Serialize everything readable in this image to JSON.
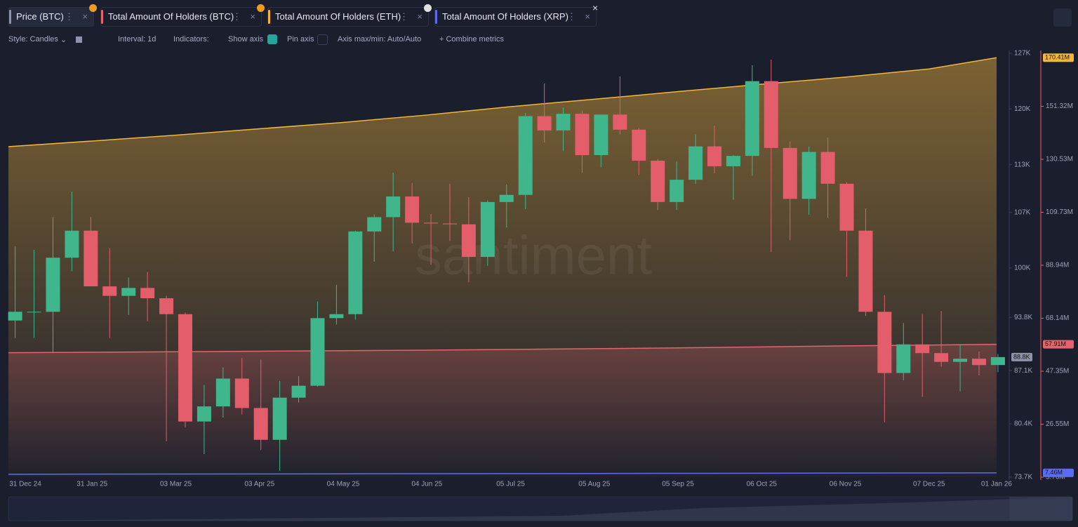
{
  "tabs": [
    {
      "label": "Price (BTC)",
      "color": "#8f93a8"
    },
    {
      "label": "Total Amount Of Holders (BTC)",
      "color": "#e5646b"
    },
    {
      "label": "Total Amount Of Holders (ETH)",
      "color": "#f3b63a"
    },
    {
      "label": "Total Amount Of Holders (XRP)",
      "color": "#5b6cf0"
    }
  ],
  "toolbar": {
    "style": "Style: Candles",
    "interval": "Interval: 1d",
    "indicators": "Indicators:",
    "show_axis": "Show axis",
    "pin_axis": "Pin axis",
    "axis_minmax": "Axis max/min: Auto/Auto",
    "combine": "Combine metrics"
  },
  "watermark": "santiment",
  "chart_data": {
    "type": "candlestick",
    "x_range": [
      "31 Dec 24",
      "01 Jan 26"
    ],
    "xticks": [
      "31 Dec 24",
      "31 Jan 25",
      "03 Mar 25",
      "03 Apr 25",
      "04 May 25",
      "04 Jun 25",
      "05 Jul 25",
      "05 Aug 25",
      "05 Sep 25",
      "06 Oct 25",
      "06 Nov 25",
      "07 Dec 25",
      "01 Jan 26"
    ],
    "ylim": [
      73.7,
      127
    ],
    "yticks": [
      {
        "value": 127,
        "label": "127K"
      },
      {
        "value": 120,
        "label": "120K"
      },
      {
        "value": 113,
        "label": "113K"
      },
      {
        "value": 107,
        "label": "107K"
      },
      {
        "value": 100,
        "label": "100K"
      },
      {
        "value": 93.8,
        "label": "93.8K"
      },
      {
        "value": 87.1,
        "label": "87.1K"
      },
      {
        "value": 80.4,
        "label": "80.4K"
      },
      {
        "value": 73.7,
        "label": "73.7K"
      }
    ],
    "up_color": "#3fb68b",
    "down_color": "#e35d6a",
    "last_price_label": "88.8K",
    "candles": [
      {
        "date": "30 Dec 24",
        "open": 93.4,
        "high": 102.7,
        "low": 91.2,
        "close": 94.5
      },
      {
        "date": "06 Jan 25",
        "open": 94.5,
        "high": 102.3,
        "low": 91.2,
        "close": 94.5
      },
      {
        "date": "13 Jan 25",
        "open": 94.5,
        "high": 106.4,
        "low": 89.3,
        "close": 101.3
      },
      {
        "date": "20 Jan 25",
        "open": 101.3,
        "high": 109.6,
        "low": 99.6,
        "close": 104.7
      },
      {
        "date": "27 Jan 25",
        "open": 104.7,
        "high": 106.4,
        "low": 97.8,
        "close": 97.7
      },
      {
        "date": "03 Feb 25",
        "open": 97.7,
        "high": 102.5,
        "low": 91.2,
        "close": 96.5
      },
      {
        "date": "10 Feb 25",
        "open": 96.5,
        "high": 98.8,
        "low": 94.1,
        "close": 97.5
      },
      {
        "date": "17 Feb 25",
        "open": 97.5,
        "high": 99.5,
        "low": 93.3,
        "close": 96.2
      },
      {
        "date": "24 Feb 25",
        "open": 96.2,
        "high": 96.5,
        "low": 78.2,
        "close": 94.2
      },
      {
        "date": "03 Mar 25",
        "open": 94.2,
        "high": 94.4,
        "low": 80.0,
        "close": 80.7
      },
      {
        "date": "10 Mar 25",
        "open": 80.7,
        "high": 85.3,
        "low": 76.6,
        "close": 82.6
      },
      {
        "date": "17 Mar 25",
        "open": 82.6,
        "high": 87.5,
        "low": 81.2,
        "close": 86.1
      },
      {
        "date": "24 Mar 25",
        "open": 86.1,
        "high": 88.7,
        "low": 81.6,
        "close": 82.4
      },
      {
        "date": "31 Mar 25",
        "open": 82.4,
        "high": 88.5,
        "low": 77.1,
        "close": 78.4
      },
      {
        "date": "07 Apr 25",
        "open": 78.4,
        "high": 85.8,
        "low": 74.5,
        "close": 83.7
      },
      {
        "date": "14 Apr 25",
        "open": 83.7,
        "high": 86.4,
        "low": 83.1,
        "close": 85.2
      },
      {
        "date": "21 Apr 25",
        "open": 85.2,
        "high": 95.8,
        "low": 85.1,
        "close": 93.7
      },
      {
        "date": "28 Apr 25",
        "open": 93.7,
        "high": 97.9,
        "low": 92.9,
        "close": 94.2
      },
      {
        "date": "05 May 25",
        "open": 94.2,
        "high": 104.7,
        "low": 93.5,
        "close": 104.6
      },
      {
        "date": "12 May 25",
        "open": 104.6,
        "high": 106.7,
        "low": 100.8,
        "close": 106.4
      },
      {
        "date": "19 May 25",
        "open": 106.4,
        "high": 112.0,
        "low": 102.1,
        "close": 109.0
      },
      {
        "date": "26 May 25",
        "open": 109.0,
        "high": 110.7,
        "low": 103.1,
        "close": 105.7
      },
      {
        "date": "02 Jun 25",
        "open": 105.7,
        "high": 106.8,
        "low": 100.4,
        "close": 105.6
      },
      {
        "date": "09 Jun 25",
        "open": 105.6,
        "high": 110.6,
        "low": 103.4,
        "close": 105.5
      },
      {
        "date": "16 Jun 25",
        "open": 105.5,
        "high": 108.9,
        "low": 98.2,
        "close": 101.4
      },
      {
        "date": "23 Jun 25",
        "open": 101.4,
        "high": 108.5,
        "low": 100.3,
        "close": 108.3
      },
      {
        "date": "30 Jun 25",
        "open": 108.3,
        "high": 110.5,
        "low": 105.1,
        "close": 109.2
      },
      {
        "date": "07 Jul 25",
        "open": 109.2,
        "high": 119.5,
        "low": 107.4,
        "close": 119.1
      },
      {
        "date": "14 Jul 25",
        "open": 119.1,
        "high": 123.2,
        "low": 115.8,
        "close": 117.3
      },
      {
        "date": "21 Jul 25",
        "open": 117.3,
        "high": 120.2,
        "low": 114.7,
        "close": 119.4
      },
      {
        "date": "28 Jul 25",
        "open": 119.4,
        "high": 119.8,
        "low": 112.0,
        "close": 114.2
      },
      {
        "date": "04 Aug 25",
        "open": 114.2,
        "high": 119.3,
        "low": 112.7,
        "close": 119.3
      },
      {
        "date": "11 Aug 25",
        "open": 119.3,
        "high": 124.1,
        "low": 116.8,
        "close": 117.4
      },
      {
        "date": "18 Aug 25",
        "open": 117.4,
        "high": 117.6,
        "low": 111.7,
        "close": 113.5
      },
      {
        "date": "25 Aug 25",
        "open": 113.5,
        "high": 113.7,
        "low": 107.3,
        "close": 108.3
      },
      {
        "date": "01 Sep 25",
        "open": 108.3,
        "high": 113.4,
        "low": 107.3,
        "close": 111.1
      },
      {
        "date": "08 Sep 25",
        "open": 111.1,
        "high": 116.8,
        "low": 110.6,
        "close": 115.3
      },
      {
        "date": "15 Sep 25",
        "open": 115.3,
        "high": 117.9,
        "low": 111.9,
        "close": 112.8
      },
      {
        "date": "22 Sep 25",
        "open": 112.8,
        "high": 114.2,
        "low": 108.6,
        "close": 114.1
      },
      {
        "date": "29 Sep 25",
        "open": 114.1,
        "high": 125.5,
        "low": 111.6,
        "close": 123.5
      },
      {
        "date": "06 Oct 25",
        "open": 123.5,
        "high": 126.2,
        "low": 102.0,
        "close": 115.1
      },
      {
        "date": "13 Oct 25",
        "open": 115.1,
        "high": 115.9,
        "low": 103.5,
        "close": 108.7
      },
      {
        "date": "20 Oct 25",
        "open": 108.7,
        "high": 115.3,
        "low": 106.7,
        "close": 114.6
      },
      {
        "date": "27 Oct 25",
        "open": 114.6,
        "high": 116.4,
        "low": 106.3,
        "close": 110.6
      },
      {
        "date": "03 Nov 25",
        "open": 110.6,
        "high": 110.8,
        "low": 98.9,
        "close": 104.7
      },
      {
        "date": "10 Nov 25",
        "open": 104.7,
        "high": 107.5,
        "low": 94.0,
        "close": 94.5
      },
      {
        "date": "17 Nov 25",
        "open": 94.5,
        "high": 96.6,
        "low": 80.6,
        "close": 86.8
      },
      {
        "date": "24 Nov 25",
        "open": 86.8,
        "high": 93.1,
        "low": 85.9,
        "close": 90.4
      },
      {
        "date": "01 Dec 25",
        "open": 90.4,
        "high": 94.2,
        "low": 83.8,
        "close": 89.3
      },
      {
        "date": "08 Dec 25",
        "open": 89.3,
        "high": 94.6,
        "low": 87.6,
        "close": 88.2
      },
      {
        "date": "15 Dec 25",
        "open": 88.2,
        "high": 90.4,
        "low": 84.5,
        "close": 88.6
      },
      {
        "date": "22 Dec 25",
        "open": 88.6,
        "high": 89.5,
        "low": 86.5,
        "close": 87.8
      },
      {
        "date": "29 Dec 25",
        "open": 87.8,
        "high": 89.2,
        "low": 86.9,
        "close": 88.8
      }
    ],
    "y2lim": [
      5.76,
      172.12
    ],
    "y2ticks": [
      {
        "value": 151.32,
        "label": "151.32M"
      },
      {
        "value": 130.53,
        "label": "130.53M"
      },
      {
        "value": 109.73,
        "label": "109.73M"
      },
      {
        "value": 88.94,
        "label": "88.94M"
      },
      {
        "value": 68.14,
        "label": "68.14M"
      },
      {
        "value": 47.35,
        "label": "47.35M"
      },
      {
        "value": 26.55,
        "label": "26.55M"
      },
      {
        "value": 5.76,
        "label": "5.76M"
      }
    ],
    "x": [
      "31 Dec 24",
      "31 Jan 25",
      "03 Mar 25",
      "03 Apr 25",
      "04 May 25",
      "04 Jun 25",
      "05 Jul 25",
      "05 Aug 25",
      "05 Sep 25",
      "06 Oct 25",
      "06 Nov 25",
      "07 Dec 25",
      "01 Jan 26"
    ],
    "series": [
      {
        "name": "Total Amount Of Holders (ETH)",
        "color": "#f3b63a",
        "axis": "y2",
        "last_value_label": "170.41M",
        "values": [
          135.5,
          137.7,
          140.0,
          142.5,
          145.0,
          147.9,
          151.2,
          154.1,
          157.1,
          160.0,
          162.8,
          166.0,
          170.41
        ]
      },
      {
        "name": "Total Amount Of Holders (BTC)",
        "color": "#e5646b",
        "axis": "y2",
        "last_value_label": "57.91M",
        "values": [
          54.6,
          54.8,
          55.0,
          55.2,
          55.4,
          55.6,
          55.9,
          56.2,
          56.5,
          56.9,
          57.3,
          57.6,
          57.91
        ]
      },
      {
        "name": "Total Amount Of Holders (XRP)",
        "color": "#5b6cf0",
        "axis": "y2",
        "last_value_label": "7.46M",
        "values": [
          6.9,
          6.95,
          7.0,
          7.04,
          7.08,
          7.12,
          7.17,
          7.22,
          7.27,
          7.32,
          7.37,
          7.42,
          7.46
        ]
      }
    ]
  }
}
